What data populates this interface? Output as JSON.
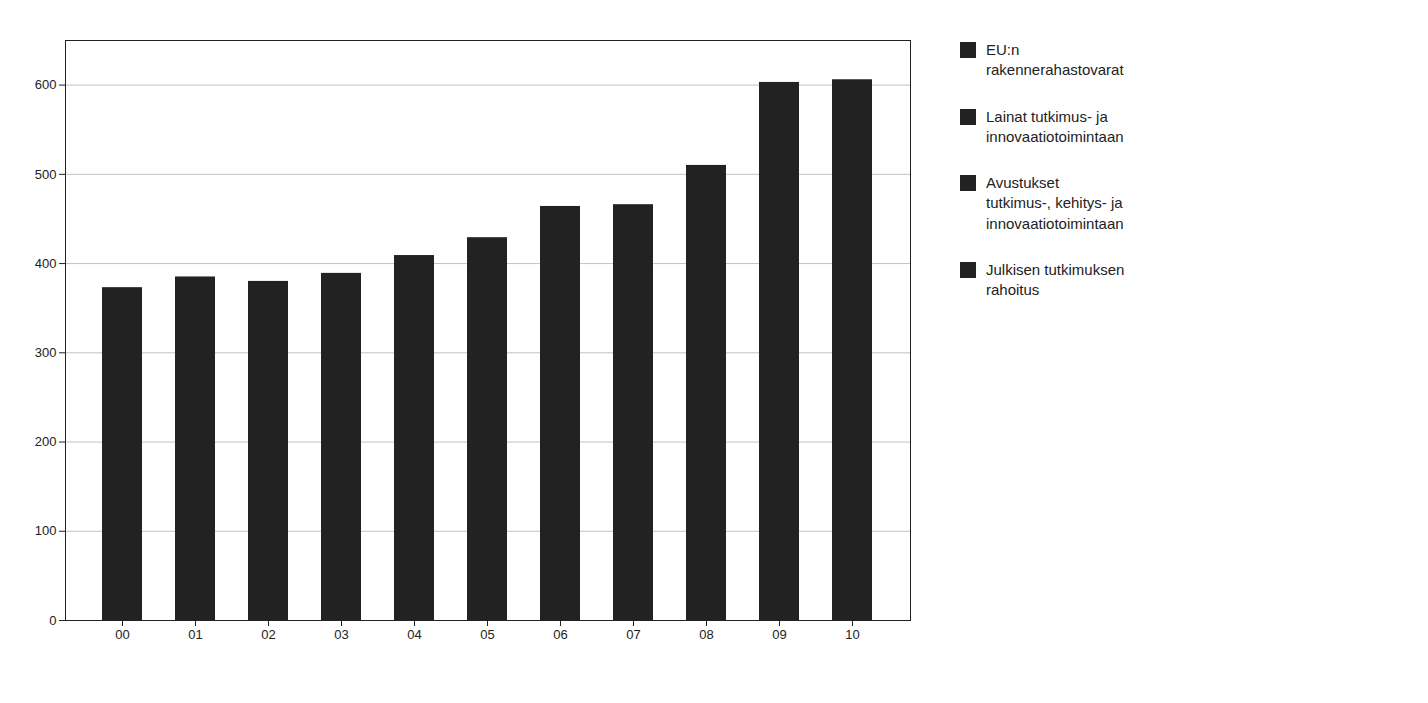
{
  "chart_data": {
    "type": "bar",
    "categories": [
      "00",
      "01",
      "02",
      "03",
      "04",
      "05",
      "06",
      "07",
      "08",
      "09",
      "10"
    ],
    "values": [
      373,
      385,
      380,
      389,
      409,
      429,
      464,
      466,
      510,
      603,
      606
    ],
    "ylim": [
      0,
      650
    ],
    "yticks": [
      0,
      100,
      200,
      300,
      400,
      500,
      600
    ],
    "grid": true,
    "annotations": [
      "EU:n\nrakennerahastovarat",
      "Lainat tutkimus- ja\ninnovaatiotoimintaan",
      "Avustukset\ntutkimus-, kehitys- ja\ninnovaatiotoimintaan",
      "Julkisen tutkimuksen\nrahoitus"
    ]
  }
}
